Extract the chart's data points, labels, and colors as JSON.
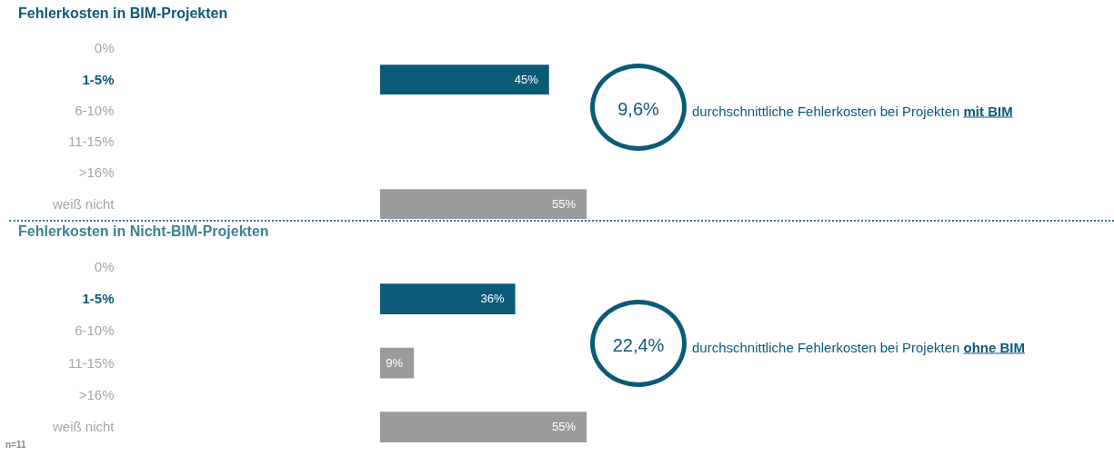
{
  "chart_data": [
    {
      "type": "bar",
      "orientation": "horizontal",
      "title": "Fehlerkosten in BIM-Projekten",
      "categories": [
        "0%",
        "1-5%",
        "6-10%",
        "11-15%",
        ">16%",
        "weiß nicht"
      ],
      "values": [
        null,
        45,
        null,
        null,
        null,
        55
      ],
      "value_labels": [
        null,
        "45%",
        null,
        null,
        null,
        "55%"
      ],
      "colors": [
        null,
        "#0b5a78",
        null,
        null,
        null,
        "#9b9b9b"
      ],
      "annotations": [
        "9,6%",
        "durchschnittliche Fehlerkosten bei Projekten",
        "mit BIM"
      ]
    },
    {
      "type": "bar",
      "orientation": "horizontal",
      "title": "Fehlerkosten in Nicht-BIM-Projekten",
      "categories": [
        "0%",
        "1-5%",
        "6-10%",
        "11-15%",
        ">16%",
        "weiß nicht"
      ],
      "values": [
        null,
        36,
        null,
        9,
        null,
        55
      ],
      "value_labels": [
        null,
        "36%",
        null,
        "9%",
        null,
        "55%"
      ],
      "colors": [
        null,
        "#0b5a78",
        null,
        "#9b9b9b",
        null,
        "#9b9b9b"
      ],
      "annotations": [
        "22,4%",
        "durchschnittliche Fehlerkosten bei Projekten",
        "ohne BIM",
        "n=11"
      ]
    }
  ]
}
